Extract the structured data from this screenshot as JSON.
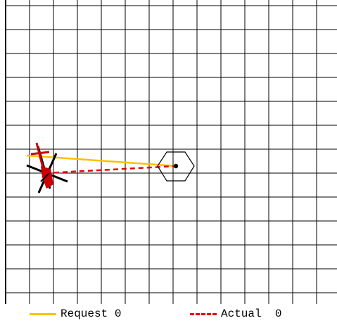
{
  "colors": {
    "grid": "#000000",
    "background": "#ffffff",
    "request": "#ffc000",
    "actual": "#e80000",
    "robot_body": "#000000",
    "robot_highlight": "#cc0000",
    "target": "#000000"
  },
  "icons": {
    "robot": "robot-icon",
    "target": "hexagon-target-icon"
  },
  "legend": {
    "request_label": "Request 0",
    "actual_label": "Actual  0"
  }
}
